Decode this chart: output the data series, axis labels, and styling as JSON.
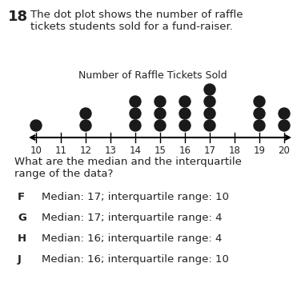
{
  "title": "Number of Raffle Tickets Sold",
  "question_number": "18",
  "question_text": "The dot plot shows the number of raffle\ntickets students sold for a fund-raiser.",
  "dot_data": {
    "10": 1,
    "11": 0,
    "12": 2,
    "13": 0,
    "14": 3,
    "15": 3,
    "16": 3,
    "17": 4,
    "18": 0,
    "19": 3,
    "20": 2
  },
  "answer_question": "What are the median and the interquartile\nrange of the data?",
  "answers": [
    {
      "label": "F",
      "text": "Median: 17; interquartile range: 10"
    },
    {
      "label": "G",
      "text": "Median: 17; interquartile range: 4"
    },
    {
      "label": "H",
      "text": "Median: 16; interquartile range: 4"
    },
    {
      "label": "J",
      "text": "Median: 16; interquartile range: 10"
    }
  ],
  "dot_color": "#1a1a1a",
  "dot_size": 6.5,
  "bg_color": "#ffffff",
  "text_color": "#222222",
  "title_fontsize": 9.0,
  "body_fontsize": 9.5,
  "answer_fontsize": 9.5,
  "number_fontsize": 13,
  "tick_label_fontsize": 8.5
}
